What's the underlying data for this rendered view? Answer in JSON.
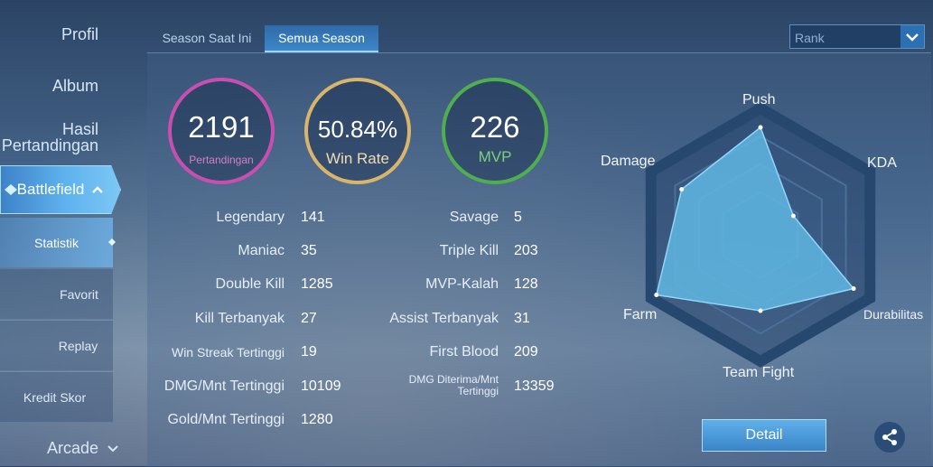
{
  "sidebar": {
    "profil": "Profil",
    "album": "Album",
    "hasil_line1": "Hasil",
    "hasil_line2": "Pertandingan",
    "battlefield": "Battlefield",
    "sub_items": [
      "Statistik",
      "Favorit",
      "Replay",
      "Kredit Skor"
    ],
    "arcade": "Arcade"
  },
  "tabs": [
    "Season Saat Ini",
    "Semua Season"
  ],
  "dropdown": {
    "placeholder": "Rank"
  },
  "summary": {
    "matches": {
      "value": "2191",
      "label": "Pertandingan",
      "color": "#c84fb0"
    },
    "winrate": {
      "value": "50.84%",
      "label": "Win Rate",
      "color": "#d8b56a"
    },
    "mvp": {
      "value": "226",
      "label": "MVP",
      "color": "#4fae4f"
    }
  },
  "stats_left": [
    {
      "label": "Legendary",
      "value": "141"
    },
    {
      "label": "Maniac",
      "value": "35"
    },
    {
      "label": "Double Kill",
      "value": "1285"
    },
    {
      "label": "Kill Terbanyak",
      "value": "27"
    },
    {
      "label": "Win Streak Tertinggi",
      "value": "19"
    },
    {
      "label": "DMG/Mnt Tertinggi",
      "value": "10109"
    },
    {
      "label": "Gold/Mnt Tertinggi",
      "value": "1280"
    }
  ],
  "stats_right": [
    {
      "label": "Savage",
      "value": "5"
    },
    {
      "label": "Triple Kill",
      "value": "203"
    },
    {
      "label": "MVP-Kalah",
      "value": "128"
    },
    {
      "label": "Assist Terbanyak",
      "value": "31"
    },
    {
      "label": "First Blood",
      "value": "209"
    },
    {
      "label": "DMG Diterima/Mnt Tertinggi",
      "value": "13359"
    }
  ],
  "radar": {
    "axes": [
      "Push",
      "KDA",
      "Durabilitas",
      "Team Fight",
      "Farm",
      "Damage"
    ],
    "levels": [
      0.85,
      0.3,
      0.85,
      0.6,
      0.95,
      0.72
    ],
    "fill_color": "#5fb7e3"
  },
  "buttons": {
    "detail": "Detail"
  }
}
